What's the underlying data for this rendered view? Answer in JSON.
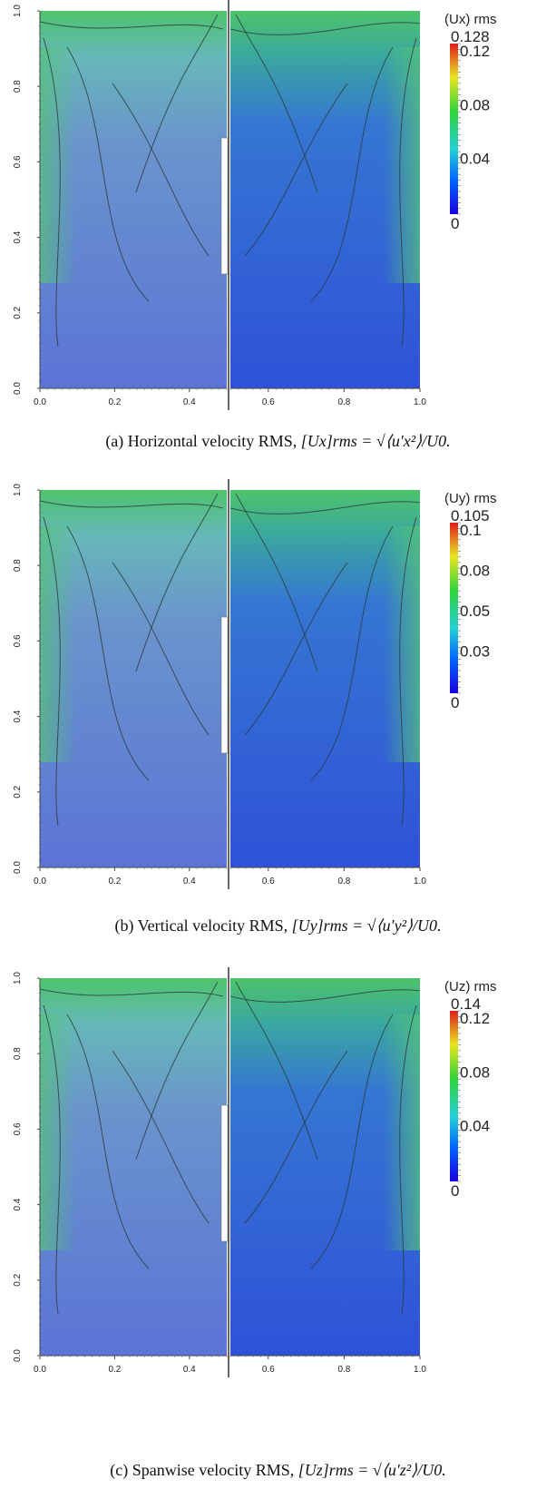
{
  "chart_data": [
    {
      "type": "heatmap",
      "title": "(Ux) rms",
      "colorbar": {
        "max": "0.128",
        "ticks": [
          "0.12",
          "0.08",
          "0.04",
          "0"
        ]
      },
      "left_ticks": [
        "0.0",
        "0.2",
        "0.4",
        "0.6",
        "0.8",
        "1.0"
      ],
      "bottom_ticks_left": [
        "0.0",
        "0.2",
        "0.4"
      ],
      "bottom_ticks_right": [
        "0.6",
        "0.8",
        "1.0"
      ],
      "caption": "(a) Horizontal velocity RMS,",
      "equation": "[Ux]rms = √⟨u′x²⟩/U0.",
      "colors": {
        "left": "#5b74d6",
        "right": "#2f52d8",
        "top_band": "#4cc46a"
      }
    },
    {
      "type": "heatmap",
      "title": "(Uy) rms",
      "colorbar": {
        "max": "0.105",
        "ticks": [
          "0.1",
          "0.08",
          "0.05",
          "0.03",
          "0"
        ]
      },
      "left_ticks": [
        "0.0",
        "0.2",
        "0.4",
        "0.6",
        "0.8",
        "1.0"
      ],
      "bottom_ticks_left": [
        "0.0",
        "0.2",
        "0.4"
      ],
      "bottom_ticks_right": [
        "0.6",
        "0.8",
        "1.0"
      ],
      "caption": "(b) Vertical velocity RMS,",
      "equation": "[Uy]rms = √⟨u′y²⟩/U0.",
      "colors": {
        "left": "#5b74d6",
        "right": "#2f52d8",
        "top_band": "#4cc46a"
      }
    },
    {
      "type": "heatmap",
      "title": "(Uz) rms",
      "colorbar": {
        "max": "0.14",
        "ticks": [
          "0.12",
          "0.08",
          "0.04",
          "0"
        ]
      },
      "left_ticks": [
        "0.0",
        "0.2",
        "0.4",
        "0.6",
        "0.8",
        "1.0"
      ],
      "bottom_ticks_left": [
        "0.0",
        "0.2",
        "0.4"
      ],
      "bottom_ticks_right": [
        "0.6",
        "0.8",
        "1.0"
      ],
      "caption": "(c) Spanwise velocity RMS,",
      "equation": "[Uz]rms = √⟨u′z²⟩/U0.",
      "colors": {
        "left": "#5b74d6",
        "right": "#2f52d8",
        "top_band": "#4cc46a"
      }
    }
  ]
}
